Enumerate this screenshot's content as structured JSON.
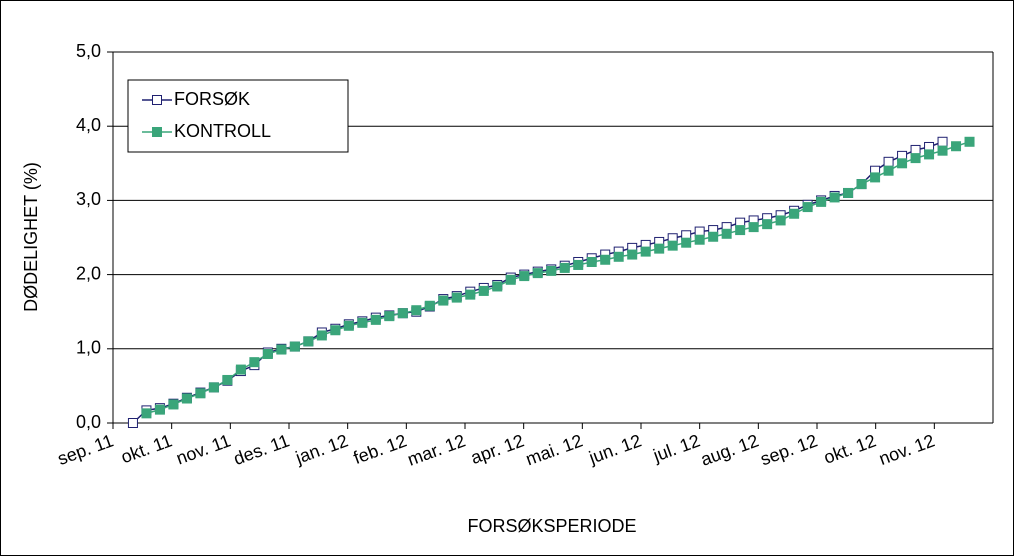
{
  "chart_data": {
    "type": "line",
    "y_label": "DØDELIGHET (%)",
    "x_label": "FORSØKSPERIODE",
    "x": [
      0.34,
      0.57,
      0.8,
      1.03,
      1.26,
      1.49,
      1.72,
      1.95,
      2.18,
      2.41,
      2.64,
      2.87,
      3.1,
      3.33,
      3.56,
      3.79,
      4.02,
      4.25,
      4.48,
      4.71,
      4.94,
      5.17,
      5.4,
      5.63,
      5.86,
      6.09,
      6.32,
      6.55,
      6.78,
      7.01,
      7.24,
      7.47,
      7.7,
      7.93,
      8.16,
      8.39,
      8.62,
      8.85,
      9.08,
      9.31,
      9.54,
      9.77,
      10.0,
      10.23,
      10.46,
      10.69,
      10.92,
      11.15,
      11.38,
      11.61,
      11.84,
      12.07,
      12.3,
      12.53,
      12.76,
      12.99,
      13.22,
      13.45,
      13.68,
      13.91,
      14.14,
      14.37,
      14.6
    ],
    "series": [
      {
        "name": "FORSØK",
        "color": "#1f2070",
        "values": [
          0.0,
          0.17,
          0.2,
          0.26,
          0.34,
          0.41,
          0.48,
          0.57,
          0.7,
          0.78,
          0.95,
          1.0,
          1.03,
          1.1,
          1.22,
          1.27,
          1.33,
          1.37,
          1.42,
          1.45,
          1.48,
          1.5,
          1.57,
          1.67,
          1.71,
          1.77,
          1.82,
          1.86,
          1.96,
          2.0,
          2.04,
          2.07,
          2.12,
          2.17,
          2.22,
          2.27,
          2.31,
          2.36,
          2.4,
          2.44,
          2.49,
          2.53,
          2.58,
          2.6,
          2.64,
          2.7,
          2.73,
          2.76,
          2.8,
          2.86,
          2.94,
          3.0,
          3.06,
          3.1,
          3.22,
          3.4,
          3.52,
          3.6,
          3.68,
          3.72,
          3.79,
          null,
          null
        ]
      },
      {
        "name": "KONTROLL",
        "color": "#3aa57a",
        "values": [
          null,
          0.13,
          0.18,
          0.25,
          0.33,
          0.4,
          0.48,
          0.58,
          0.72,
          0.82,
          0.93,
          0.99,
          1.03,
          1.1,
          1.18,
          1.25,
          1.31,
          1.35,
          1.39,
          1.44,
          1.48,
          1.52,
          1.58,
          1.65,
          1.69,
          1.73,
          1.78,
          1.84,
          1.93,
          1.98,
          2.02,
          2.05,
          2.09,
          2.13,
          2.17,
          2.2,
          2.24,
          2.27,
          2.31,
          2.35,
          2.39,
          2.43,
          2.47,
          2.51,
          2.55,
          2.6,
          2.64,
          2.68,
          2.73,
          2.82,
          2.91,
          2.98,
          3.04,
          3.1,
          3.22,
          3.31,
          3.4,
          3.5,
          3.57,
          3.62,
          3.67,
          3.73,
          3.79
        ]
      }
    ],
    "xlim": [
      0,
      15
    ],
    "xticks": [
      {
        "value": 0,
        "label": "sep. 11"
      },
      {
        "value": 1,
        "label": "okt. 11"
      },
      {
        "value": 2,
        "label": "nov. 11"
      },
      {
        "value": 3,
        "label": "des. 11"
      },
      {
        "value": 4,
        "label": "jan. 12"
      },
      {
        "value": 5,
        "label": "feb. 12"
      },
      {
        "value": 6,
        "label": "mar. 12"
      },
      {
        "value": 7,
        "label": "apr. 12"
      },
      {
        "value": 8,
        "label": "mai. 12"
      },
      {
        "value": 9,
        "label": "jun. 12"
      },
      {
        "value": 10,
        "label": "jul. 12"
      },
      {
        "value": 11,
        "label": "aug. 12"
      },
      {
        "value": 12,
        "label": "sep. 12"
      },
      {
        "value": 13,
        "label": "okt. 12"
      },
      {
        "value": 14,
        "label": "nov. 12"
      }
    ],
    "ylim": [
      0,
      5
    ],
    "yticks": [
      {
        "value": 0,
        "label": "0,0"
      },
      {
        "value": 1,
        "label": "1,0"
      },
      {
        "value": 2,
        "label": "2,0"
      },
      {
        "value": 3,
        "label": "3,0"
      },
      {
        "value": 4,
        "label": "4,0"
      },
      {
        "value": 5,
        "label": "5,0"
      }
    ],
    "grid": true,
    "legend": "upper left"
  }
}
